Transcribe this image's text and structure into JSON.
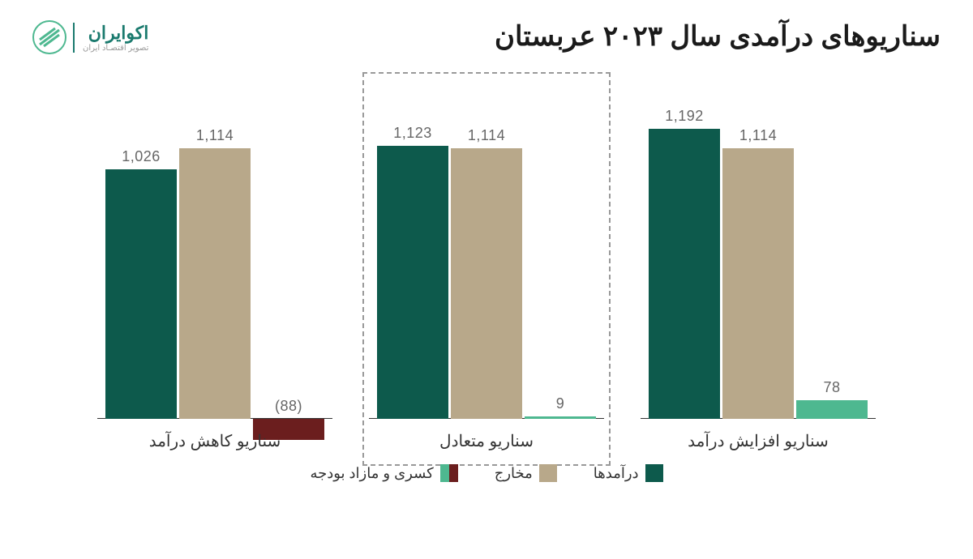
{
  "title": "سناریوهای درآمدی سال ۲۰۲۳ عربستان",
  "logo": {
    "main": "اکوایران",
    "sub": "تصویر اقتصـاد ایران"
  },
  "chart": {
    "type": "bar",
    "ymax": 1200,
    "colors": {
      "revenue": "#0d5a4c",
      "expense": "#b8a88a",
      "surplus": "#4eb890",
      "deficit": "#6b1e1e"
    },
    "label_color": "#666666",
    "label_fontsize": 18,
    "groups": [
      {
        "key": "decrease",
        "label": "سناریو کاهش درآمد",
        "highlighted": false,
        "bars": [
          {
            "series": "revenue",
            "value": 1026,
            "display": "1,026"
          },
          {
            "series": "expense",
            "value": 1114,
            "display": "1,114"
          },
          {
            "series": "balance",
            "value": -88,
            "display": "(88)"
          }
        ]
      },
      {
        "key": "balanced",
        "label": "سناریو متعادل",
        "highlighted": true,
        "bars": [
          {
            "series": "revenue",
            "value": 1123,
            "display": "1,123"
          },
          {
            "series": "expense",
            "value": 1114,
            "display": "1,114"
          },
          {
            "series": "balance",
            "value": 9,
            "display": "9"
          }
        ]
      },
      {
        "key": "increase",
        "label": "سناریو افزایش درآمد",
        "highlighted": false,
        "bars": [
          {
            "series": "revenue",
            "value": 1192,
            "display": "1,192"
          },
          {
            "series": "expense",
            "value": 1114,
            "display": "1,114"
          },
          {
            "series": "balance",
            "value": 78,
            "display": "78"
          }
        ]
      }
    ],
    "legend": [
      {
        "label": "درآمدها",
        "fill": [
          "#0d5a4c"
        ]
      },
      {
        "label": "مخارج",
        "fill": [
          "#b8a88a"
        ]
      },
      {
        "label": "کسری و مازاد بودجه",
        "fill": [
          "#6b1e1e",
          "#4eb890"
        ]
      }
    ]
  }
}
